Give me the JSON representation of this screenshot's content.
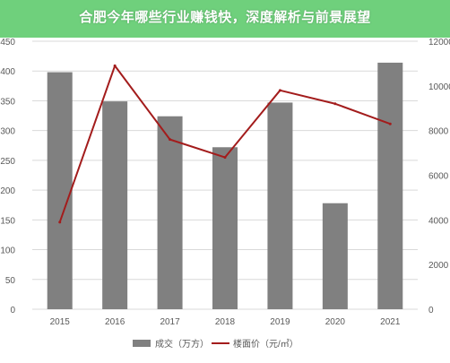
{
  "title": "合肥今年哪些行业赚钱快，深度解析与前景展望",
  "colors": {
    "banner": "#6fd07c",
    "bar": "#808080",
    "line": "#a31c1c",
    "grid": "#d9d9d9",
    "axis_text": "#595959"
  },
  "chart_data": {
    "type": "bar",
    "categories": [
      "2015",
      "2016",
      "2017",
      "2018",
      "2019",
      "2020",
      "2021"
    ],
    "series": [
      {
        "name": "成交（万方）",
        "type": "bar",
        "axis": "left",
        "values": [
          398,
          349,
          324,
          272,
          347,
          178,
          414
        ]
      },
      {
        "name": "楼面价（元/㎡）",
        "type": "line",
        "axis": "right",
        "values": [
          3900,
          10900,
          7600,
          6800,
          9800,
          9200,
          8300
        ]
      }
    ],
    "y_left": {
      "ylim": [
        0,
        450
      ],
      "ticks": [
        "0",
        "50",
        "100",
        "150",
        "200",
        "250",
        "300",
        "350",
        "400",
        "450"
      ]
    },
    "y_right": {
      "ylim": [
        0,
        12000
      ],
      "ticks": [
        "0",
        "2000",
        "4000",
        "6000",
        "8000",
        "10000",
        "12000"
      ]
    },
    "grid": true,
    "legend": "bottom"
  }
}
